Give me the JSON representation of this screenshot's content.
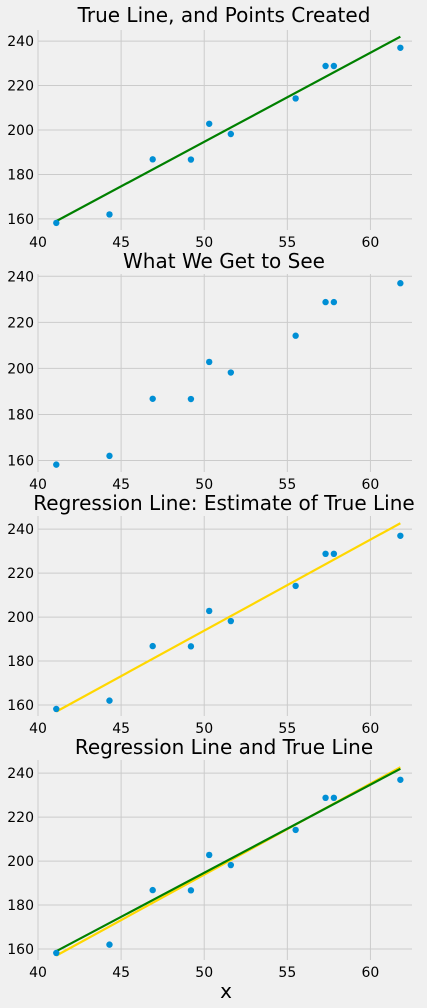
{
  "chart_data": [
    {
      "type": "scatter",
      "title": "True Line, and Points Created",
      "xlabel": "",
      "ylabel": "",
      "xlim": [
        40,
        62.5
      ],
      "ylim": [
        155,
        245
      ],
      "grid": true,
      "x_ticks": [
        40,
        45,
        50,
        55,
        60
      ],
      "y_ticks": [
        160,
        180,
        200,
        220,
        240
      ],
      "series": [
        {
          "kind": "points",
          "color": "#008fd5",
          "x": [
            41.1,
            44.3,
            46.9,
            49.2,
            50.3,
            51.6,
            55.5,
            57.3,
            57.8,
            61.8
          ],
          "y": [
            158.2,
            162.0,
            186.8,
            186.7,
            202.8,
            198.2,
            214.2,
            228.8,
            228.8,
            237.0
          ]
        },
        {
          "kind": "line",
          "color": "#008000",
          "x": [
            41.1,
            61.8
          ],
          "y": [
            159.0,
            242.0
          ]
        }
      ]
    },
    {
      "type": "scatter",
      "title": "What We Get to See",
      "xlabel": "",
      "ylabel": "",
      "xlim": [
        40,
        62.5
      ],
      "ylim": [
        155,
        241
      ],
      "grid": true,
      "x_ticks": [
        40,
        45,
        50,
        55,
        60
      ],
      "y_ticks": [
        160,
        180,
        200,
        220,
        240
      ],
      "series": [
        {
          "kind": "points",
          "color": "#008fd5",
          "x": [
            41.1,
            44.3,
            46.9,
            49.2,
            50.3,
            51.6,
            55.5,
            57.3,
            57.8,
            61.8
          ],
          "y": [
            158.2,
            162.0,
            186.8,
            186.7,
            202.8,
            198.2,
            214.2,
            228.8,
            228.8,
            237.0
          ]
        }
      ]
    },
    {
      "type": "scatter",
      "title": "Regression Line: Estimate of True Line",
      "xlabel": "",
      "ylabel": "",
      "xlim": [
        40,
        62.5
      ],
      "ylim": [
        155,
        246
      ],
      "grid": true,
      "x_ticks": [
        40,
        45,
        50,
        55,
        60
      ],
      "y_ticks": [
        160,
        180,
        200,
        220,
        240
      ],
      "series": [
        {
          "kind": "points",
          "color": "#008fd5",
          "x": [
            41.1,
            44.3,
            46.9,
            49.2,
            50.3,
            51.6,
            55.5,
            57.3,
            57.8,
            61.8
          ],
          "y": [
            158.2,
            162.0,
            186.8,
            186.7,
            202.8,
            198.2,
            214.2,
            228.8,
            228.8,
            237.0
          ]
        },
        {
          "kind": "line",
          "color": "#ffd700",
          "x": [
            41.1,
            61.8
          ],
          "y": [
            157.0,
            242.7
          ]
        }
      ]
    },
    {
      "type": "scatter",
      "title": "Regression Line and True Line",
      "xlabel": "x",
      "ylabel": "",
      "xlim": [
        40,
        62.5
      ],
      "ylim": [
        155,
        246
      ],
      "grid": true,
      "x_ticks": [
        40,
        45,
        50,
        55,
        60
      ],
      "y_ticks": [
        160,
        180,
        200,
        220,
        240
      ],
      "series": [
        {
          "kind": "points",
          "color": "#008fd5",
          "x": [
            41.1,
            44.3,
            46.9,
            49.2,
            50.3,
            51.6,
            55.5,
            57.3,
            57.8,
            61.8
          ],
          "y": [
            158.2,
            162.0,
            186.8,
            186.7,
            202.8,
            198.2,
            214.2,
            228.8,
            228.8,
            237.0
          ]
        },
        {
          "kind": "line",
          "color": "#ffd700",
          "x": [
            41.1,
            61.8
          ],
          "y": [
            157.0,
            242.7
          ]
        },
        {
          "kind": "line",
          "color": "#008000",
          "x": [
            41.1,
            61.8
          ],
          "y": [
            159.0,
            242.0
          ]
        }
      ]
    }
  ]
}
